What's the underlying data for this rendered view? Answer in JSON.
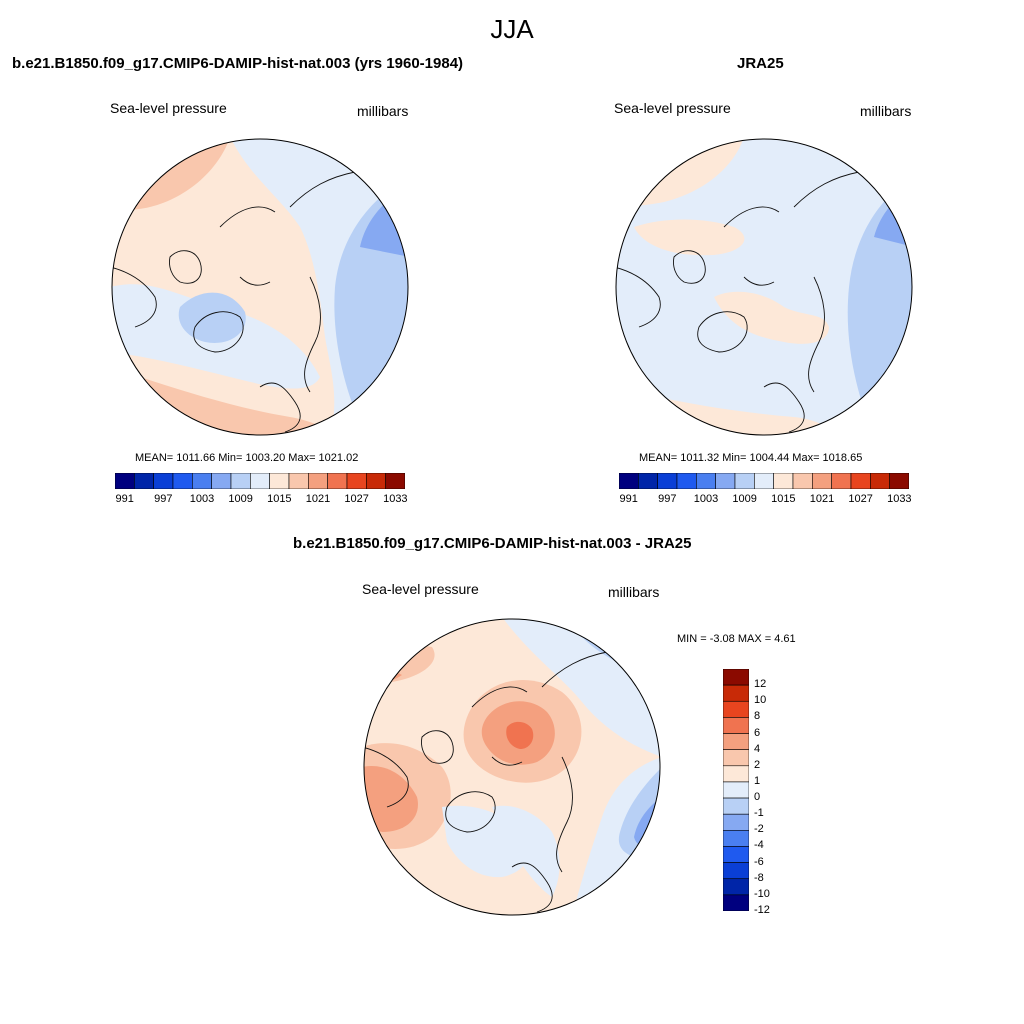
{
  "title": "JJA",
  "panels": {
    "model": {
      "title": "b.e21.B1850.f09_g17.CMIP6-DAMIP-hist-nat.003 (yrs 1960-1984)",
      "left_label": "Sea-level pressure",
      "right_label": "millibars",
      "stats": "MEAN= 1011.66  Min= 1003.20  Max= 1021.02"
    },
    "obs": {
      "title": "JRA25",
      "left_label": "Sea-level pressure",
      "right_label": "millibars",
      "stats": "MEAN= 1011.32  Min= 1004.44  Max= 1018.65"
    },
    "diff": {
      "title": "b.e21.B1850.f09_g17.CMIP6-DAMIP-hist-nat.003 - JRA25",
      "left_label": "Sea-level pressure",
      "right_label": "millibars",
      "stats": "MIN =  -3.08 MAX =   4.61"
    }
  },
  "colorbar_abs": {
    "colors": [
      "#00007f",
      "#0025a8",
      "#0a3fd6",
      "#1f5aef",
      "#4a7ff0",
      "#86a9f2",
      "#b8d0f5",
      "#e3edfa",
      "#fde8d8",
      "#f9c7ad",
      "#f4a07f",
      "#f07350",
      "#e8451f",
      "#c82a07",
      "#8b0a00"
    ],
    "labels": [
      "991",
      "997",
      "1003",
      "1009",
      "1015",
      "1021",
      "1027",
      "1033"
    ]
  },
  "colorbar_diff": {
    "colors": [
      "#00007f",
      "#0025a8",
      "#0a3fd6",
      "#1f5aef",
      "#4a7ff0",
      "#86a9f2",
      "#b8d0f5",
      "#e3edfa",
      "#fde8d8",
      "#f9c7ad",
      "#f4a07f",
      "#f07350",
      "#e8451f",
      "#c82a07",
      "#8b0a00"
    ],
    "labels": [
      "12",
      "10",
      "8",
      "6",
      "4",
      "2",
      "1",
      "0",
      "-1",
      "-2",
      "-4",
      "-6",
      "-8",
      "-10",
      "-12"
    ]
  }
}
